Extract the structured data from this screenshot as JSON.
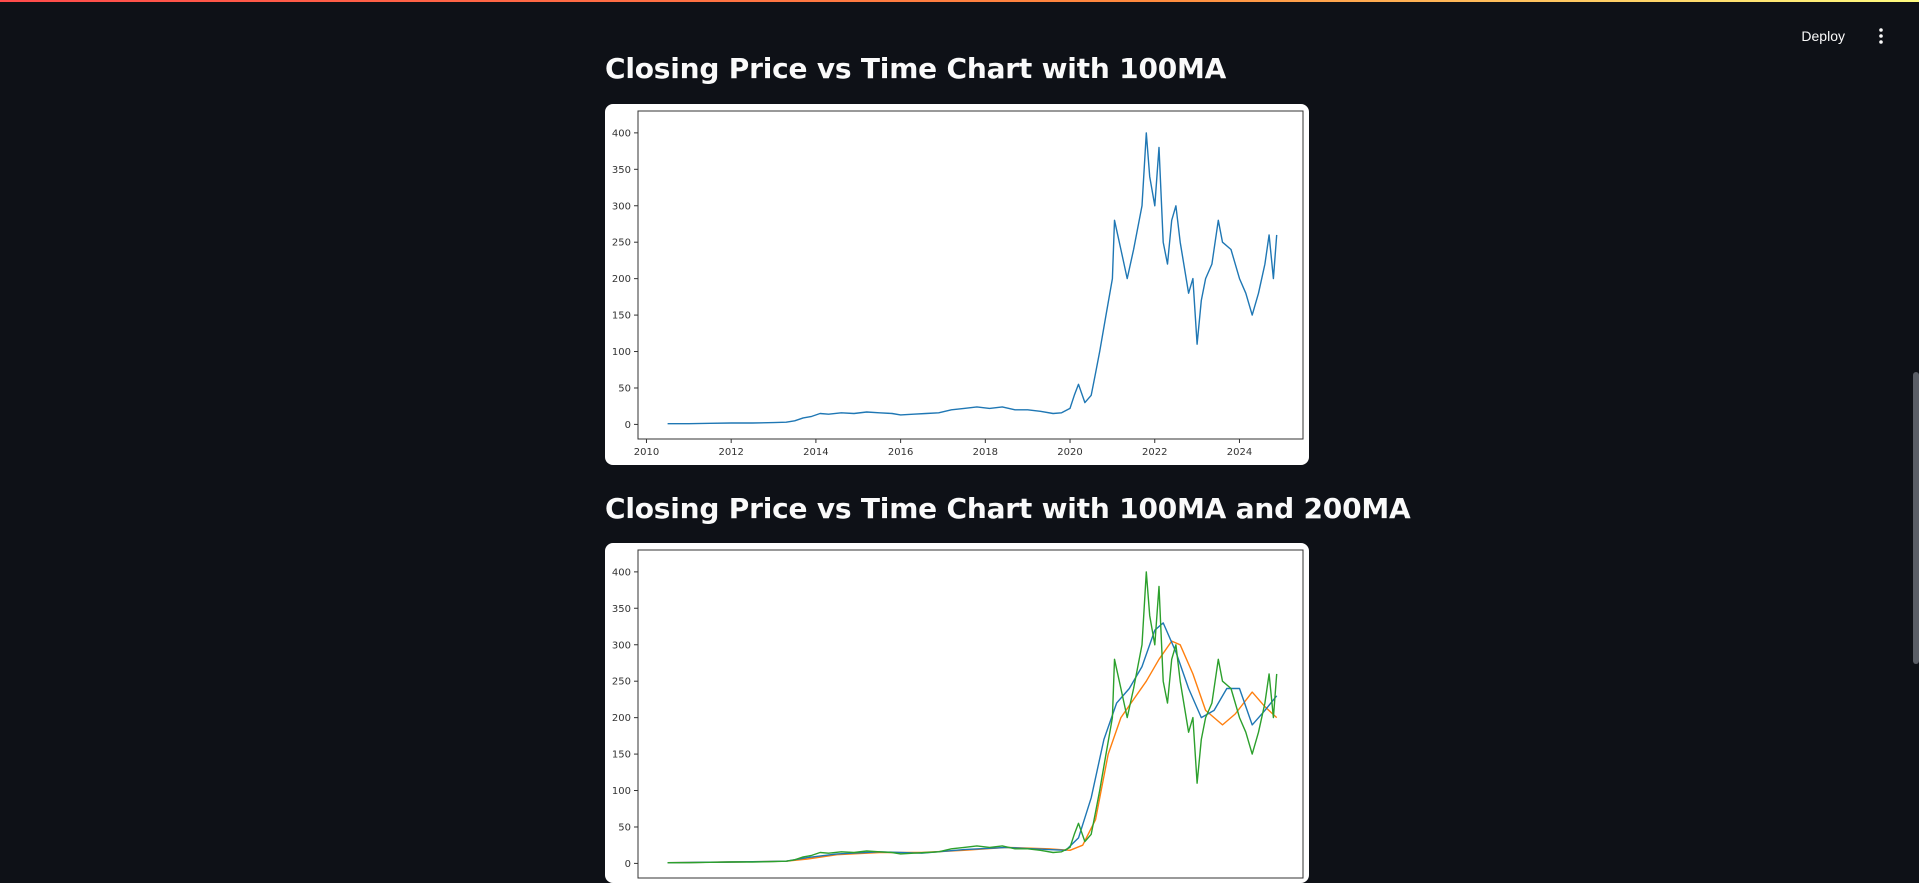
{
  "header": {
    "deploy_label": "Deploy"
  },
  "sections": [
    {
      "title": "Closing Price vs Time Chart with 100MA",
      "chart_data": {
        "type": "line",
        "title": "",
        "xlabel": "",
        "ylabel": "",
        "xlim": [
          2009.8,
          2025.5
        ],
        "ylim": [
          -20,
          430
        ],
        "x_ticks": [
          2010,
          2012,
          2014,
          2016,
          2018,
          2020,
          2022,
          2024
        ],
        "y_ticks": [
          0,
          50,
          100,
          150,
          200,
          250,
          300,
          350,
          400
        ],
        "grid": false,
        "legend": "none",
        "series": [
          {
            "color": "#1f77b4",
            "x": [
              2010.5,
              2011.0,
              2011.5,
              2012.0,
              2012.5,
              2013.0,
              2013.3,
              2013.5,
              2013.7,
              2013.9,
              2014.1,
              2014.3,
              2014.6,
              2014.9,
              2015.2,
              2015.5,
              2015.8,
              2016.0,
              2016.3,
              2016.6,
              2016.9,
              2017.2,
              2017.5,
              2017.8,
              2018.1,
              2018.4,
              2018.7,
              2019.0,
              2019.3,
              2019.6,
              2019.8,
              2020.0,
              2020.1,
              2020.2,
              2020.35,
              2020.5,
              2020.6,
              2020.7,
              2020.85,
              2021.0,
              2021.05,
              2021.2,
              2021.35,
              2021.5,
              2021.7,
              2021.8,
              2021.88,
              2022.0,
              2022.1,
              2022.2,
              2022.3,
              2022.4,
              2022.5,
              2022.6,
              2022.8,
              2022.9,
              2023.0,
              2023.1,
              2023.2,
              2023.35,
              2023.5,
              2023.6,
              2023.8,
              2024.0,
              2024.15,
              2024.3,
              2024.45,
              2024.6,
              2024.7,
              2024.8,
              2024.88
            ],
            "y": [
              1,
              1,
              1.5,
              2,
              2,
              2.5,
              3,
              5,
              9,
              11,
              15,
              14,
              16,
              15,
              17,
              16,
              15,
              13,
              14,
              15,
              16,
              20,
              22,
              24,
              22,
              24,
              20,
              20,
              18,
              15,
              16,
              22,
              40,
              55,
              30,
              40,
              70,
              100,
              150,
              200,
              280,
              240,
              200,
              240,
              300,
              400,
              340,
              300,
              380,
              250,
              220,
              280,
              300,
              250,
              180,
              200,
              110,
              170,
              200,
              220,
              280,
              250,
              240,
              200,
              180,
              150,
              180,
              220,
              260,
              200,
              260
            ]
          }
        ]
      }
    },
    {
      "title": "Closing Price vs Time Chart with 100MA and 200MA",
      "chart_data": {
        "type": "line",
        "title": "",
        "xlabel": "",
        "ylabel": "",
        "xlim": [
          2009.8,
          2025.5
        ],
        "ylim": [
          -20,
          430
        ],
        "y_ticks": [
          0,
          50,
          100,
          150,
          200,
          250,
          300,
          350,
          400
        ],
        "grid": false,
        "legend": "none",
        "series": [
          {
            "color": "#ff7f0e",
            "x": [
              2010.5,
              2012.0,
              2013.3,
              2013.8,
              2014.5,
              2015.5,
              2016.5,
              2017.5,
              2018.5,
              2019.5,
              2020.0,
              2020.3,
              2020.6,
              2020.9,
              2021.2,
              2021.5,
              2021.8,
              2022.1,
              2022.4,
              2022.6,
              2022.9,
              2023.2,
              2023.6,
              2023.9,
              2024.3,
              2024.6,
              2024.88
            ],
            "y": [
              1,
              2,
              3,
              6,
              12,
              15,
              15,
              18,
              22,
              20,
              18,
              25,
              60,
              150,
              200,
              225,
              250,
              280,
              305,
              300,
              260,
              210,
              190,
              205,
              235,
              215,
              200
            ]
          },
          {
            "color": "#1f77b4",
            "x": [
              2010.5,
              2012.0,
              2013.3,
              2013.8,
              2014.5,
              2015.5,
              2016.5,
              2017.5,
              2018.5,
              2019.5,
              2019.9,
              2020.2,
              2020.5,
              2020.8,
              2021.1,
              2021.4,
              2021.7,
              2022.0,
              2022.2,
              2022.5,
              2022.8,
              2023.1,
              2023.4,
              2023.7,
              2024.0,
              2024.3,
              2024.6,
              2024.88
            ],
            "y": [
              1,
              2,
              3,
              8,
              13,
              16,
              14,
              19,
              22,
              19,
              18,
              35,
              90,
              170,
              220,
              240,
              270,
              320,
              330,
              290,
              240,
              200,
              210,
              240,
              240,
              190,
              210,
              230
            ]
          },
          {
            "color": "#2ca02c",
            "x": [
              2010.5,
              2011.0,
              2011.5,
              2012.0,
              2012.5,
              2013.0,
              2013.3,
              2013.5,
              2013.7,
              2013.9,
              2014.1,
              2014.3,
              2014.6,
              2014.9,
              2015.2,
              2015.5,
              2015.8,
              2016.0,
              2016.3,
              2016.6,
              2016.9,
              2017.2,
              2017.5,
              2017.8,
              2018.1,
              2018.4,
              2018.7,
              2019.0,
              2019.3,
              2019.6,
              2019.8,
              2020.0,
              2020.1,
              2020.2,
              2020.35,
              2020.5,
              2020.6,
              2020.7,
              2020.85,
              2021.0,
              2021.05,
              2021.2,
              2021.35,
              2021.5,
              2021.7,
              2021.8,
              2021.88,
              2022.0,
              2022.1,
              2022.2,
              2022.3,
              2022.4,
              2022.5,
              2022.6,
              2022.8,
              2022.9,
              2023.0,
              2023.1,
              2023.2,
              2023.35,
              2023.5,
              2023.6,
              2023.8,
              2024.0,
              2024.15,
              2024.3,
              2024.45,
              2024.6,
              2024.7,
              2024.8,
              2024.88
            ],
            "y": [
              1,
              1,
              1.5,
              2,
              2,
              2.5,
              3,
              5,
              9,
              11,
              15,
              14,
              16,
              15,
              17,
              16,
              15,
              13,
              14,
              15,
              16,
              20,
              22,
              24,
              22,
              24,
              20,
              20,
              18,
              15,
              16,
              22,
              40,
              55,
              30,
              40,
              70,
              100,
              150,
              200,
              280,
              240,
              200,
              240,
              300,
              400,
              340,
              300,
              380,
              250,
              220,
              280,
              300,
              250,
              180,
              200,
              110,
              170,
              200,
              220,
              280,
              250,
              240,
              200,
              180,
              150,
              180,
              220,
              260,
              200,
              260
            ]
          }
        ]
      }
    }
  ]
}
